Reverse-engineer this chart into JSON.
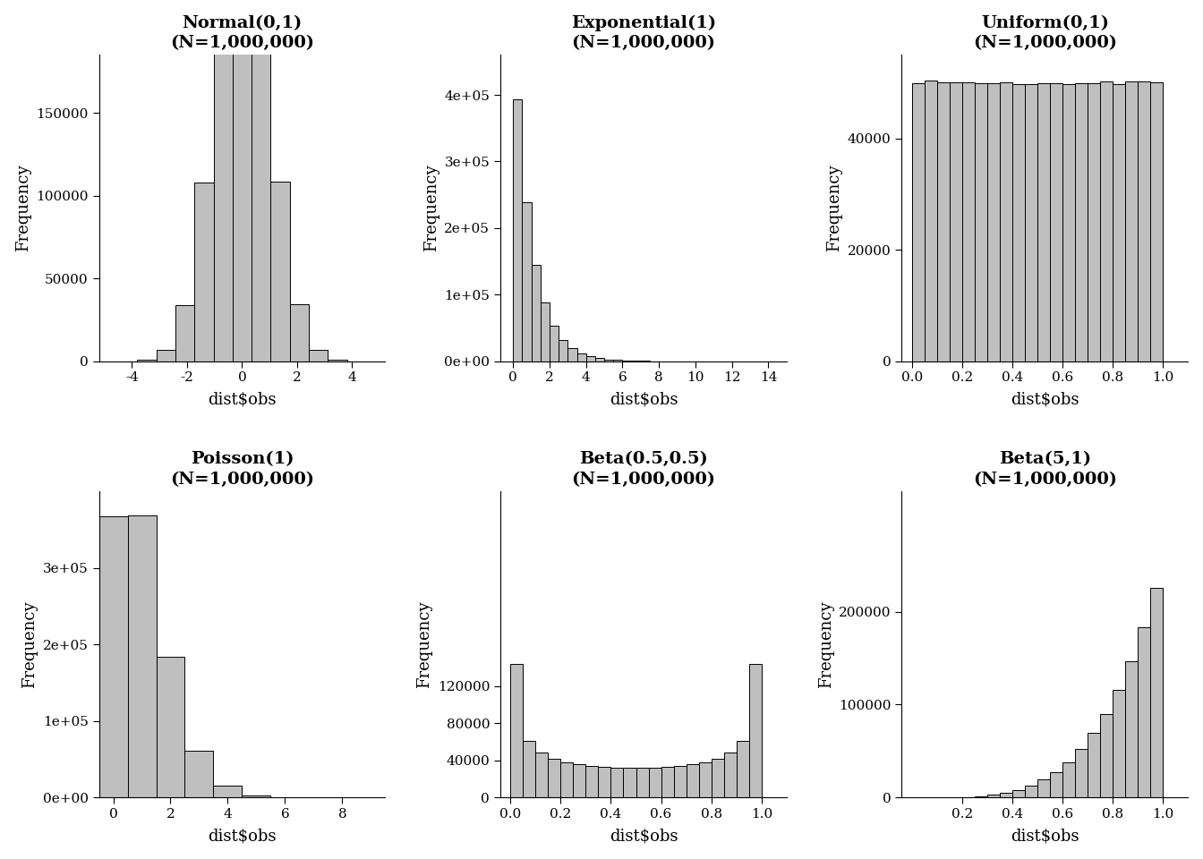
{
  "plots": [
    {
      "title": "Normal(0,1)\n(N=1,000,000)",
      "xlabel": "dist$obs",
      "ylabel": "Frequency",
      "dist": "normal",
      "params": [
        0,
        1
      ],
      "n": 1000000,
      "bins": 13,
      "range": [
        -4.5,
        4.5
      ],
      "xlim": [
        -5.2,
        5.2
      ],
      "ylim": [
        0,
        185000
      ],
      "yticks": [
        0,
        50000,
        100000,
        150000
      ],
      "ytick_labels": [
        "0",
        "50000",
        "100000",
        "150000"
      ],
      "xticks": [
        -4,
        -2,
        0,
        2,
        4
      ],
      "xtick_labels": [
        "-4",
        "-2",
        "0",
        "2",
        "4"
      ],
      "sci_y": false
    },
    {
      "title": "Exponential(1)\n(N=1,000,000)",
      "xlabel": "dist$obs",
      "ylabel": "Frequency",
      "dist": "exponential",
      "params": [
        1
      ],
      "n": 1000000,
      "bins": 28,
      "range": [
        0,
        14
      ],
      "xlim": [
        -0.7,
        15
      ],
      "ylim": [
        0,
        460000
      ],
      "yticks": [
        0,
        100000,
        200000,
        300000,
        400000
      ],
      "ytick_labels": [
        "0e+00",
        "1e+05",
        "2e+05",
        "3e+05",
        "4e+05"
      ],
      "xticks": [
        0,
        2,
        4,
        6,
        8,
        10,
        12,
        14
      ],
      "xtick_labels": [
        "0",
        "2",
        "4",
        "6",
        "8",
        "10",
        "12",
        "14"
      ],
      "sci_y": true
    },
    {
      "title": "Uniform(0,1)\n(N=1,000,000)",
      "xlabel": "dist$obs",
      "ylabel": "Frequency",
      "dist": "uniform",
      "params": [
        0,
        1
      ],
      "n": 1000000,
      "bins": 20,
      "range": [
        0,
        1
      ],
      "xlim": [
        -0.04,
        1.1
      ],
      "ylim": [
        0,
        55000
      ],
      "yticks": [
        0,
        20000,
        40000
      ],
      "ytick_labels": [
        "0",
        "20000",
        "40000"
      ],
      "xticks": [
        0.0,
        0.2,
        0.4,
        0.6,
        0.8,
        1.0
      ],
      "xtick_labels": [
        "0.0",
        "0.2",
        "0.4",
        "0.6",
        "0.8",
        "1.0"
      ],
      "sci_y": false
    },
    {
      "title": "Poisson(1)\n(N=1,000,000)",
      "xlabel": "dist$obs",
      "ylabel": "Frequency",
      "dist": "poisson",
      "params": [
        1
      ],
      "n": 1000000,
      "bins": null,
      "range": null,
      "xlim": [
        -0.5,
        9.5
      ],
      "ylim": [
        0,
        400000
      ],
      "yticks": [
        0,
        100000,
        200000,
        300000
      ],
      "ytick_labels": [
        "0e+00",
        "1e+05",
        "2e+05",
        "3e+05"
      ],
      "xticks": [
        0,
        2,
        4,
        6,
        8
      ],
      "xtick_labels": [
        "0",
        "2",
        "4",
        "6",
        "8"
      ],
      "sci_y": true
    },
    {
      "title": "Beta(0.5,0.5)\n(N=1,000,000)",
      "xlabel": "dist$obs",
      "ylabel": "Frequency",
      "dist": "beta",
      "params": [
        0.5,
        0.5
      ],
      "n": 1000000,
      "bins": 20,
      "range": [
        0,
        1
      ],
      "xlim": [
        -0.04,
        1.1
      ],
      "ylim": [
        0,
        330000
      ],
      "yticks": [
        0,
        40000,
        80000,
        120000
      ],
      "ytick_labels": [
        "0",
        "40000",
        "80000",
        "120000"
      ],
      "xticks": [
        0.0,
        0.2,
        0.4,
        0.6,
        0.8,
        1.0
      ],
      "xtick_labels": [
        "0.0",
        "0.2",
        "0.4",
        "0.6",
        "0.8",
        "1.0"
      ],
      "sci_y": false
    },
    {
      "title": "Beta(5,1)\n(N=1,000,000)",
      "xlabel": "dist$obs",
      "ylabel": "Frequency",
      "dist": "beta",
      "params": [
        5,
        1
      ],
      "n": 1000000,
      "bins": 20,
      "range": [
        0,
        1
      ],
      "xlim": [
        -0.04,
        1.1
      ],
      "ylim": [
        0,
        330000
      ],
      "yticks": [
        0,
        100000,
        200000
      ],
      "ytick_labels": [
        "0",
        "100000",
        "200000"
      ],
      "xticks": [
        0.2,
        0.4,
        0.6,
        0.8,
        1.0
      ],
      "xtick_labels": [
        "0.2",
        "0.4",
        "0.6",
        "0.8",
        "1.0"
      ],
      "sci_y": false
    }
  ],
  "bar_color": "#bfbfbf",
  "bar_edgecolor": "#000000",
  "background_color": "#ffffff",
  "title_fontsize": 14,
  "label_fontsize": 13,
  "tick_fontsize": 11
}
